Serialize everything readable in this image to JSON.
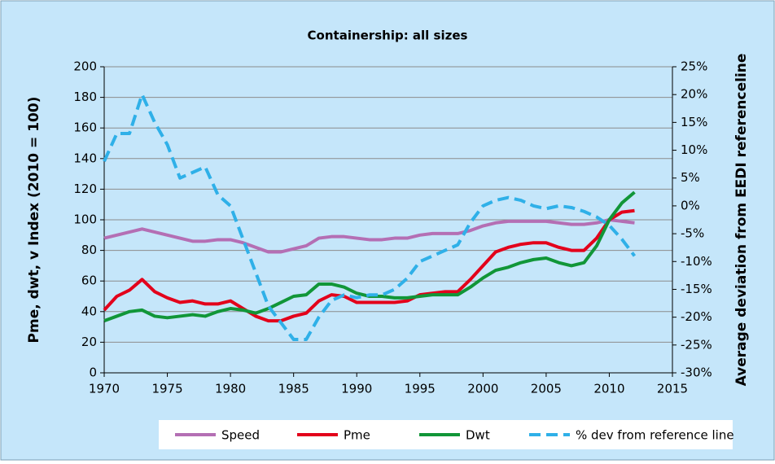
{
  "chart_data": {
    "type": "line",
    "title": "Containership: all sizes",
    "y_label": "Pme, dwt, v Index (2010 = 100)",
    "y2_label": "Average deviation from EEDI referenceline",
    "x": [
      1970,
      1971,
      1972,
      1973,
      1974,
      1975,
      1976,
      1977,
      1978,
      1979,
      1980,
      1981,
      1982,
      1983,
      1984,
      1985,
      1986,
      1987,
      1988,
      1989,
      1990,
      1991,
      1992,
      1993,
      1994,
      1995,
      1996,
      1997,
      1998,
      1999,
      2000,
      2001,
      2002,
      2003,
      2004,
      2005,
      2006,
      2007,
      2008,
      2009,
      2010,
      2011,
      2012
    ],
    "xlim": [
      1970,
      2015
    ],
    "xticks": [
      1970,
      1975,
      1980,
      1985,
      1990,
      1995,
      2000,
      2005,
      2010,
      2015
    ],
    "ylim": [
      0,
      200
    ],
    "yticks": [
      0,
      20,
      40,
      60,
      80,
      100,
      120,
      140,
      160,
      180,
      200
    ],
    "y2lim": [
      -30,
      25
    ],
    "y2ticks": [
      {
        "value": -30,
        "label": "-30%"
      },
      {
        "value": -25,
        "label": "-25%"
      },
      {
        "value": -20,
        "label": "-20%"
      },
      {
        "value": -15,
        "label": "-15%"
      },
      {
        "value": -10,
        "label": "-10%"
      },
      {
        "value": -5,
        "label": "-5%"
      },
      {
        "value": 0,
        "label": "0%"
      },
      {
        "value": 5,
        "label": "5%"
      },
      {
        "value": 10,
        "label": "10%"
      },
      {
        "value": 15,
        "label": "15%"
      },
      {
        "value": 20,
        "label": "20%"
      },
      {
        "value": 25,
        "label": "25%"
      }
    ],
    "grid": true,
    "legend": "bottom",
    "series": [
      {
        "name": "Speed",
        "color": "#b46fb4",
        "values": [
          88,
          90,
          92,
          94,
          92,
          90,
          88,
          86,
          86,
          87,
          87,
          85,
          82,
          79,
          79,
          81,
          83,
          88,
          89,
          89,
          88,
          87,
          87,
          88,
          88,
          90,
          91,
          91,
          91,
          93,
          96,
          98,
          99,
          99,
          99,
          99,
          98,
          97,
          97,
          98,
          100,
          99,
          98
        ]
      },
      {
        "name": "Pme",
        "color": "#e3001b",
        "values": [
          41,
          50,
          54,
          61,
          53,
          49,
          46,
          47,
          45,
          45,
          47,
          42,
          37,
          34,
          34,
          37,
          39,
          47,
          51,
          50,
          46,
          46,
          46,
          46,
          47,
          51,
          52,
          53,
          53,
          61,
          70,
          79,
          82,
          84,
          85,
          85,
          82,
          80,
          80,
          88,
          100,
          105,
          106
        ]
      },
      {
        "name": "Dwt",
        "color": "#119638",
        "values": [
          34,
          37,
          40,
          41,
          37,
          36,
          37,
          38,
          37,
          40,
          42,
          41,
          39,
          42,
          46,
          50,
          51,
          58,
          58,
          56,
          52,
          50,
          50,
          49,
          49,
          50,
          51,
          51,
          51,
          56,
          62,
          67,
          69,
          72,
          74,
          75,
          72,
          70,
          72,
          83,
          100,
          111,
          118
        ]
      },
      {
        "name": "% dev from reference line",
        "color": "#2fb0e8",
        "axis": "y2",
        "dashed": true,
        "values": [
          8,
          13,
          13,
          20,
          15,
          11,
          5,
          6,
          7,
          2,
          0,
          -6,
          -12,
          -18,
          -21,
          -24,
          -24,
          -20,
          -17,
          -16,
          -16.5,
          -16,
          -16,
          -15,
          -13,
          -10,
          -9,
          -8,
          -7,
          -3,
          0,
          1,
          1.5,
          1,
          0,
          -0.5,
          0,
          -0.3,
          -1,
          -2,
          -3.5,
          -6,
          -9
        ]
      }
    ]
  }
}
